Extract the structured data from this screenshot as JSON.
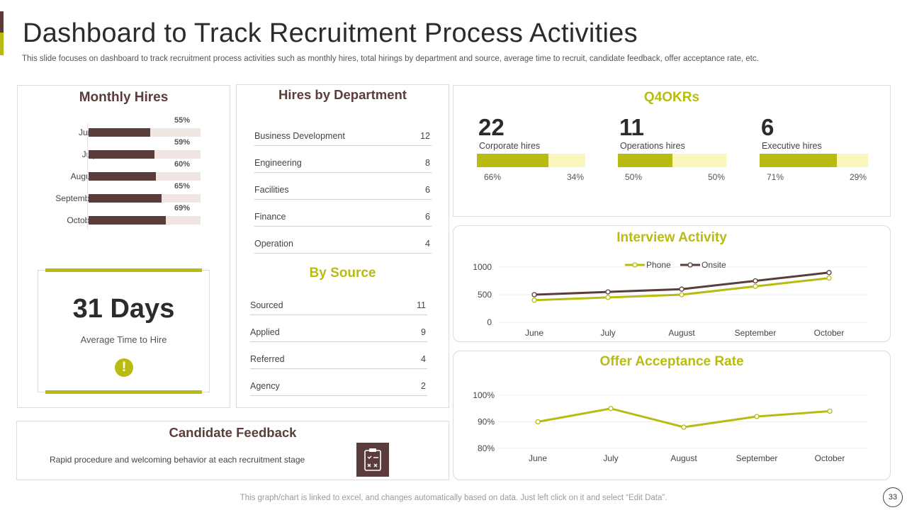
{
  "header": {
    "title": "Dashboard to Track Recruitment Process Activities",
    "subtitle": "This slide focuses on dashboard to track recruitment process activities such as monthly hires, total hirings by department and source, average time to recruit, candidate feedback, offer acceptance rate, etc."
  },
  "monthly_hires": {
    "title": "Monthly Hires",
    "rows": [
      {
        "label": "June",
        "value": 55,
        "text": "55%"
      },
      {
        "label": "July",
        "value": 59,
        "text": "59%"
      },
      {
        "label": "August",
        "value": 60,
        "text": "60%"
      },
      {
        "label": "September",
        "value": 65,
        "text": "65%"
      },
      {
        "label": "October",
        "value": 69,
        "text": "69%"
      }
    ]
  },
  "avg_time": {
    "value": "31 Days",
    "label": "Average Time to Hire",
    "icon": "alert-icon",
    "icon_glyph": "!"
  },
  "department": {
    "title": "Hires by Department",
    "rows": [
      {
        "name": "Business Development",
        "value": "12"
      },
      {
        "name": "Engineering",
        "value": "8"
      },
      {
        "name": "Facilities",
        "value": "6"
      },
      {
        "name": "Finance",
        "value": "6"
      },
      {
        "name": "Operation",
        "value": "4"
      }
    ]
  },
  "source": {
    "title": "By Source",
    "rows": [
      {
        "name": "Sourced",
        "value": "11"
      },
      {
        "name": "Applied",
        "value": "9"
      },
      {
        "name": "Referred",
        "value": "4"
      },
      {
        "name": "Agency",
        "value": "2"
      }
    ]
  },
  "okrs": {
    "title": "Q4OKRs",
    "items": [
      {
        "number": "22",
        "label": "Corporate hires",
        "fill": 66,
        "left": "66%",
        "right": "34%"
      },
      {
        "number": "11",
        "label": "Operations hires",
        "fill": 50,
        "left": "50%",
        "right": "50%"
      },
      {
        "number": "6",
        "label": "Executive hires",
        "fill": 71,
        "left": "71%",
        "right": "29%"
      }
    ]
  },
  "feedback": {
    "title": "Candidate Feedback",
    "text": "Rapid procedure and welcoming behavior at each recruitment stage",
    "icon": "clipboard-icon"
  },
  "colors": {
    "brown": "#5a3d3a",
    "olive": "#b9bc10",
    "light_olive": "#fbf6bb",
    "light_brown": "#efe5e3"
  },
  "chart_data": [
    {
      "type": "bar",
      "title": "Monthly Hires",
      "orientation": "horizontal",
      "categories": [
        "June",
        "July",
        "August",
        "September",
        "October"
      ],
      "values": [
        55,
        59,
        60,
        65,
        69
      ],
      "unit": "%",
      "xlim": [
        0,
        100
      ]
    },
    {
      "type": "line",
      "title": "Interview Activity",
      "categories": [
        "June",
        "July",
        "August",
        "September",
        "October"
      ],
      "series": [
        {
          "name": "Phone",
          "values": [
            400,
            450,
            500,
            650,
            800
          ],
          "color": "#b9bc10"
        },
        {
          "name": "Onsite",
          "values": [
            500,
            550,
            600,
            750,
            900
          ],
          "color": "#5a3d3a"
        }
      ],
      "yticks": [
        "0",
        "500",
        "1000"
      ],
      "ylim": [
        0,
        1000
      ],
      "legend": "top-center"
    },
    {
      "type": "line",
      "title": "Offer Acceptance Rate",
      "categories": [
        "June",
        "July",
        "August",
        "September",
        "October"
      ],
      "series": [
        {
          "name": "Offer Acceptance Rate",
          "values": [
            90,
            95,
            88,
            92,
            94
          ],
          "color": "#b9bc10"
        }
      ],
      "yticks": [
        "80%",
        "90%",
        "100%"
      ],
      "ylim": [
        80,
        100
      ]
    }
  ],
  "footer": {
    "note": "This graph/chart is linked to excel,  and changes automatically based on data. Just left click on it and select “Edit Data”.",
    "page": "33"
  }
}
